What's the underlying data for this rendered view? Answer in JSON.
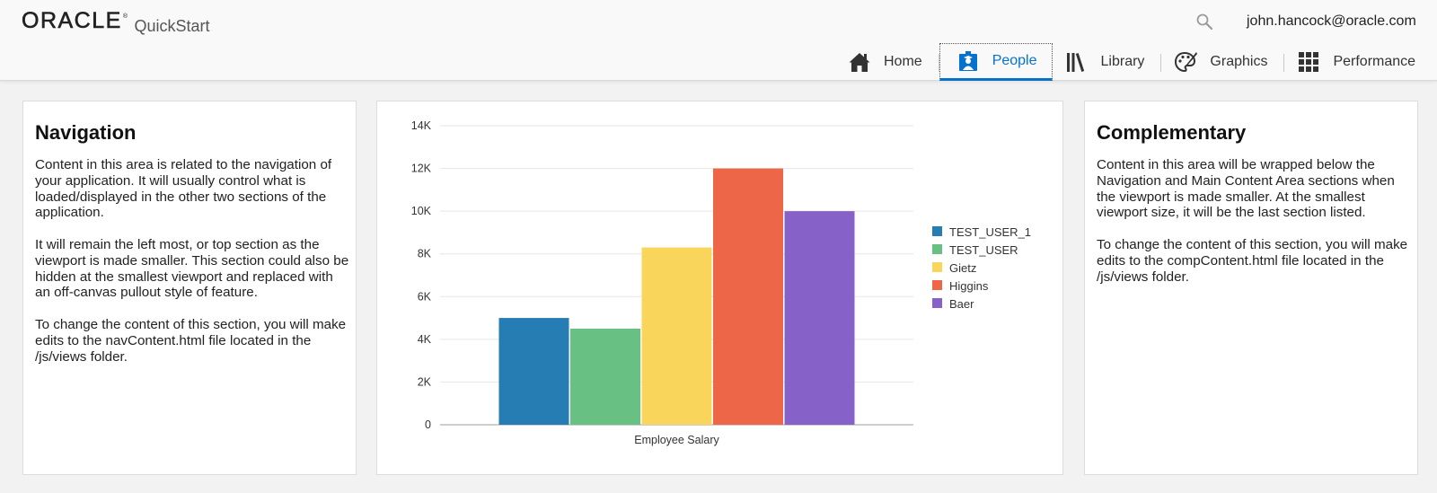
{
  "header": {
    "logo_text": "ORACLE",
    "logo_mark": "®",
    "app_name": "QuickStart",
    "search_icon": "search-icon",
    "user_email": "john.hancock@oracle.com"
  },
  "nav": {
    "items": [
      {
        "label": "Home",
        "icon": "home-icon"
      },
      {
        "label": "People",
        "icon": "people-icon",
        "active": true
      },
      {
        "label": "Library",
        "icon": "library-icon"
      },
      {
        "label": "Graphics",
        "icon": "graphics-icon"
      },
      {
        "label": "Performance",
        "icon": "grid-icon"
      }
    ],
    "active_color": "#0572ce"
  },
  "navigation_panel": {
    "title": "Navigation",
    "paragraphs": [
      "Content in this area is related to the navigation of your application. It will usually control what is loaded/displayed in the other two sections of the application.",
      "It will remain the left most, or top section as the viewport is made smaller. This section could also be hidden at the smallest viewport and replaced with an off-canvas pullout style of feature.",
      "To change the content of this section, you will make edits to the navContent.html file located in the /js/views folder."
    ]
  },
  "complementary_panel": {
    "title": "Complementary",
    "paragraphs": [
      "Content in this area will be wrapped below the Navigation and Main Content Area sections when the viewport is made smaller. At the smallest viewport size, it will be the last section listed.",
      "To change the content of this section, you will make edits to the compContent.html file located in the /js/views folder."
    ]
  },
  "chart_data": {
    "type": "bar",
    "categories": [
      "Employee Salary"
    ],
    "series": [
      {
        "name": "TEST_USER_1",
        "values": [
          5000
        ],
        "color": "#267db3"
      },
      {
        "name": "TEST_USER",
        "values": [
          4500
        ],
        "color": "#68c182"
      },
      {
        "name": "Gietz",
        "values": [
          8300
        ],
        "color": "#fad55c"
      },
      {
        "name": "Higgins",
        "values": [
          12000
        ],
        "color": "#ed6647"
      },
      {
        "name": "Baer",
        "values": [
          10000
        ],
        "color": "#8561c8"
      }
    ],
    "ylim": [
      0,
      14000
    ],
    "yticks": [
      0,
      2000,
      4000,
      6000,
      8000,
      10000,
      12000,
      14000
    ],
    "ytick_labels": [
      "0",
      "2K",
      "4K",
      "6K",
      "8K",
      "10K",
      "12K",
      "14K"
    ],
    "grid": true,
    "legend": "right"
  }
}
